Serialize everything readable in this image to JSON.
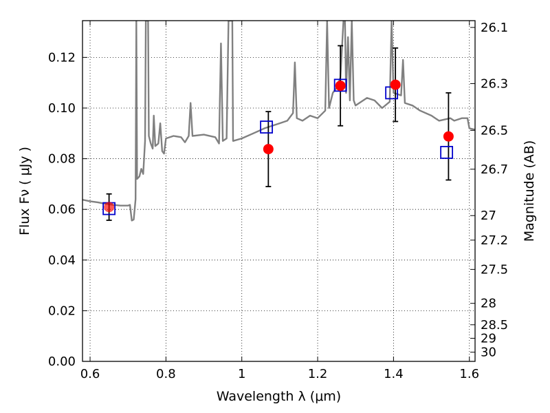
{
  "chart_data": {
    "type": "scatter",
    "x_axis": {
      "label": "Wavelength  λ (μm)",
      "range": [
        0.58,
        1.615
      ],
      "ticks": [
        0.6,
        0.8,
        1.0,
        1.2,
        1.4,
        1.6
      ],
      "tick_labels": [
        "0.6",
        "0.8",
        "1",
        "1.2",
        "1.4",
        "1.6"
      ]
    },
    "y_axis": {
      "label": "Flux  Fν  ( μJy )",
      "range": [
        0.0,
        0.1345
      ],
      "ticks": [
        0.0,
        0.02,
        0.04,
        0.06,
        0.08,
        0.1,
        0.12
      ],
      "tick_labels": [
        "0.00",
        "0.02",
        "0.04",
        "0.06",
        "0.08",
        "0.10",
        "0.12"
      ]
    },
    "y2_axis": {
      "label": "Magnitude (AB)",
      "ticks": [
        26.1,
        26.3,
        26.5,
        26.7,
        27,
        27.2,
        27.5,
        28,
        28.5,
        29,
        30
      ],
      "tick_labels": [
        "26.1",
        "26.3",
        "26.5",
        "26.7",
        "27",
        "27.2",
        "27.5",
        "28",
        "28.5",
        "29",
        "30"
      ]
    },
    "grid": true,
    "colors": {
      "observed": "#ff0000",
      "model": "#0000cc",
      "spectrum": "#808080",
      "errorbar": "#000000"
    },
    "observed": [
      {
        "x": 0.65,
        "y": 0.0609,
        "yerr": 0.0052
      },
      {
        "x": 1.07,
        "y": 0.0838,
        "yerr": 0.0148
      },
      {
        "x": 1.26,
        "y": 0.1088,
        "yerr": 0.0158
      },
      {
        "x": 1.405,
        "y": 0.1092,
        "yerr": 0.0145
      },
      {
        "x": 1.545,
        "y": 0.0888,
        "yerr": 0.0172
      }
    ],
    "model": [
      {
        "x": 0.65,
        "y": 0.0603
      },
      {
        "x": 1.065,
        "y": 0.0925
      },
      {
        "x": 1.26,
        "y": 0.109
      },
      {
        "x": 1.395,
        "y": 0.106
      },
      {
        "x": 1.54,
        "y": 0.0825
      }
    ],
    "spectrum": [
      [
        0.58,
        0.0638
      ],
      [
        0.6,
        0.0632
      ],
      [
        0.62,
        0.0628
      ],
      [
        0.64,
        0.0622
      ],
      [
        0.66,
        0.0618
      ],
      [
        0.68,
        0.0615
      ],
      [
        0.7,
        0.0615
      ],
      [
        0.705,
        0.0618
      ],
      [
        0.71,
        0.0556
      ],
      [
        0.715,
        0.056
      ],
      [
        0.72,
        0.064
      ],
      [
        0.722,
        0.1345
      ],
      [
        0.724,
        0.072
      ],
      [
        0.73,
        0.073
      ],
      [
        0.735,
        0.076
      ],
      [
        0.74,
        0.074
      ],
      [
        0.745,
        0.087
      ],
      [
        0.747,
        0.1345
      ],
      [
        0.753,
        0.1345
      ],
      [
        0.755,
        0.089
      ],
      [
        0.76,
        0.086
      ],
      [
        0.765,
        0.084
      ],
      [
        0.768,
        0.097
      ],
      [
        0.772,
        0.085
      ],
      [
        0.78,
        0.086
      ],
      [
        0.785,
        0.094
      ],
      [
        0.79,
        0.083
      ],
      [
        0.795,
        0.082
      ],
      [
        0.8,
        0.088
      ],
      [
        0.82,
        0.089
      ],
      [
        0.84,
        0.0885
      ],
      [
        0.85,
        0.0865
      ],
      [
        0.86,
        0.089
      ],
      [
        0.865,
        0.102
      ],
      [
        0.87,
        0.089
      ],
      [
        0.9,
        0.0895
      ],
      [
        0.93,
        0.0885
      ],
      [
        0.94,
        0.086
      ],
      [
        0.945,
        0.1255
      ],
      [
        0.95,
        0.087
      ],
      [
        0.96,
        0.088
      ],
      [
        0.965,
        0.1345
      ],
      [
        0.975,
        0.1345
      ],
      [
        0.977,
        0.087
      ],
      [
        1.0,
        0.088
      ],
      [
        1.03,
        0.09
      ],
      [
        1.06,
        0.092
      ],
      [
        1.08,
        0.093
      ],
      [
        1.1,
        0.094
      ],
      [
        1.12,
        0.095
      ],
      [
        1.135,
        0.098
      ],
      [
        1.14,
        0.118
      ],
      [
        1.145,
        0.096
      ],
      [
        1.16,
        0.095
      ],
      [
        1.18,
        0.097
      ],
      [
        1.2,
        0.096
      ],
      [
        1.22,
        0.099
      ],
      [
        1.225,
        0.1345
      ],
      [
        1.23,
        0.1
      ],
      [
        1.24,
        0.106
      ],
      [
        1.25,
        0.108
      ],
      [
        1.255,
        0.11
      ],
      [
        1.26,
        0.112
      ],
      [
        1.268,
        0.1345
      ],
      [
        1.272,
        0.1345
      ],
      [
        1.275,
        0.106
      ],
      [
        1.28,
        0.128
      ],
      [
        1.285,
        0.103
      ],
      [
        1.29,
        0.1345
      ],
      [
        1.295,
        0.103
      ],
      [
        1.3,
        0.101
      ],
      [
        1.32,
        0.103
      ],
      [
        1.33,
        0.104
      ],
      [
        1.35,
        0.103
      ],
      [
        1.37,
        0.1
      ],
      [
        1.39,
        0.1025
      ],
      [
        1.395,
        0.1345
      ],
      [
        1.4,
        0.106
      ],
      [
        1.41,
        0.1055
      ],
      [
        1.42,
        0.105
      ],
      [
        1.425,
        0.119
      ],
      [
        1.43,
        0.102
      ],
      [
        1.45,
        0.101
      ],
      [
        1.47,
        0.099
      ],
      [
        1.5,
        0.097
      ],
      [
        1.52,
        0.095
      ],
      [
        1.55,
        0.096
      ],
      [
        1.56,
        0.095
      ],
      [
        1.58,
        0.096
      ],
      [
        1.595,
        0.096
      ],
      [
        1.6,
        0.092
      ],
      [
        1.615,
        0.0915
      ]
    ]
  }
}
